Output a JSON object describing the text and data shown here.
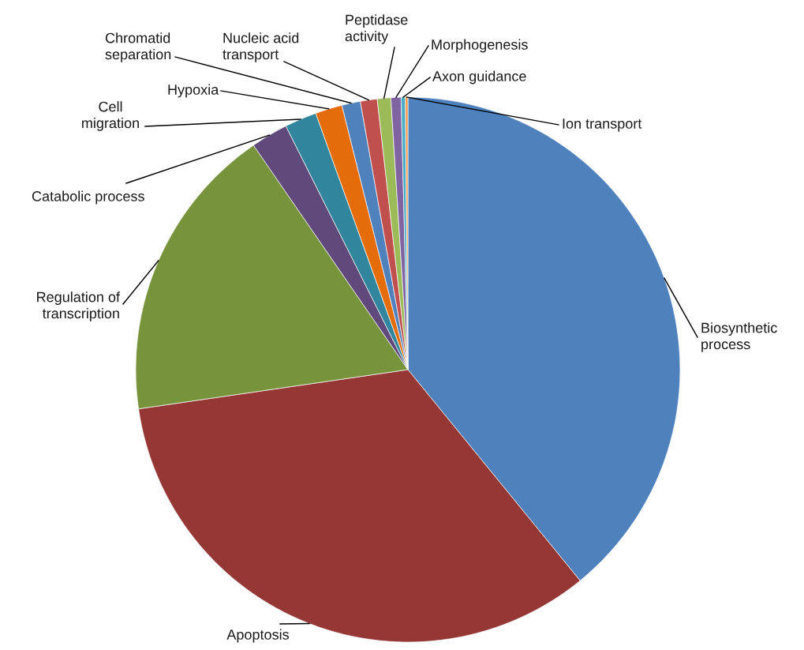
{
  "chart_data": {
    "type": "pie",
    "categories": [
      "Biosynthetic\nprocess",
      "Apoptosis",
      "Regulation of\ntranscription",
      "Catabolic process",
      "Cell\nmigration",
      "Hypoxia",
      "Chromatid\nseparation",
      "Nucleic acid\ntransport",
      "Peptidase\nactivity",
      "Morphogenesis",
      "Axon guidance",
      "Ion transport"
    ],
    "values": [
      39.1,
      33.6,
      17.7,
      2.2,
      1.9,
      1.6,
      1.1,
      1.0,
      0.8,
      0.6,
      0.25,
      0.15
    ],
    "colors": [
      "#4f81bd",
      "#953735",
      "#77933c",
      "#604a7b",
      "#31859c",
      "#e46c0a",
      "#4f81bd",
      "#c0504d",
      "#9bbb59",
      "#8064a2",
      "#4bacc6",
      "#f79646"
    ],
    "legend": false
  }
}
